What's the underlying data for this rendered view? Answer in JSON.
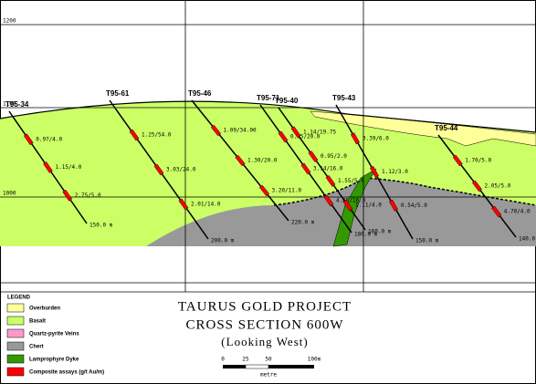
{
  "section": {
    "grid_labels": [
      "1000",
      "1100",
      "1200"
    ],
    "holes": [
      {
        "name": "T95-34",
        "assays": [
          "0.97/4.0",
          "1.15/4.0",
          "2.75/5.0"
        ],
        "depth": "150.0 m"
      },
      {
        "name": "T95-61",
        "assays": [
          "1.25/54.0",
          "3.03/24.0",
          "2.01/14.0"
        ],
        "depth": "200.0 m"
      },
      {
        "name": "T95-46",
        "assays": [
          "1.09/34.00",
          "1.30/20.0",
          "3.20/11.0"
        ],
        "depth": "220.0 m"
      },
      {
        "name": "T95-71",
        "assays": [
          "0.95/20.0",
          "3.14/16.0",
          "4.65/16.0"
        ],
        "depth": "180.0 m"
      },
      {
        "name": "T95-40",
        "assays": [
          "1.14/19.75",
          "0.95/2.0",
          "1.55/5.0",
          "1.11/4.0"
        ],
        "depth": "160.0 m"
      },
      {
        "name": "T95-43",
        "assays": [
          "3.39/6.0",
          "1.12/3.0",
          "0.54/5.0"
        ],
        "depth": "150.0 m"
      },
      {
        "name": "T95-44",
        "assays": [
          "1.70/5.0",
          "2.05/5.0",
          "4.70/4.0"
        ],
        "depth": "140.0 m"
      }
    ]
  },
  "legend": {
    "title": "LEGEND",
    "items": [
      "Overburden",
      "Basalt",
      "Quartz-pyrite Veins",
      "Chert",
      "Lamprophyre Dyke",
      "Composite assays (g/t Au/m)"
    ]
  },
  "title": {
    "line1": "TAURUS GOLD PROJECT",
    "line2": "CROSS SECTION 600W",
    "line3": "(Looking West)"
  },
  "scale": {
    "ticks": [
      "0",
      "25",
      "50",
      "100m"
    ],
    "unit": "metre"
  }
}
